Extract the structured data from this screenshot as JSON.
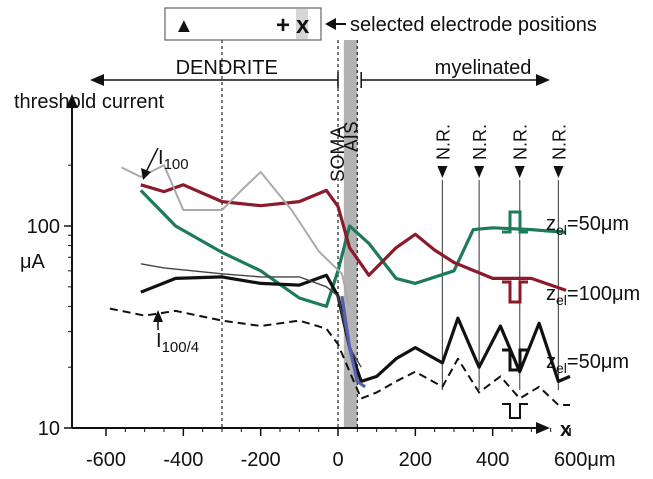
{
  "chart_data": {
    "type": "line",
    "title": "",
    "xlabel": "x",
    "ylabel": "threshold current",
    "yunit": "μA",
    "yscale": "log",
    "xlim": [
      -620,
      640
    ],
    "ylim": [
      10,
      250
    ],
    "x_ticks": [
      {
        "value": -600,
        "label": "-600"
      },
      {
        "value": -400,
        "label": "-400"
      },
      {
        "value": -200,
        "label": "-200"
      },
      {
        "value": 0,
        "label": "0"
      },
      {
        "value": 200,
        "label": "200"
      },
      {
        "value": 400,
        "label": "400"
      },
      {
        "value": 600,
        "label": "600μm"
      }
    ],
    "y_ticks": [
      {
        "value": 10,
        "label": "10"
      },
      {
        "value": 100,
        "label": "100"
      }
    ],
    "regions": {
      "dendrite": "DENDRITE",
      "myelinated": "myelinated",
      "soma": "SOMA",
      "ais": "AIS",
      "node": "N.R.",
      "node_positions": [
        270,
        365,
        470,
        570
      ],
      "ais_range": [
        15,
        50
      ],
      "dendrite_range": [
        -610,
        0
      ],
      "myelinated_range": [
        55,
        610
      ]
    },
    "legend": {
      "text": "selected electrode positions",
      "markers": [
        {
          "symbol": "▲",
          "color": "#b5a800",
          "x": -300
        },
        {
          "symbol": "+",
          "color": "#222222",
          "x": 0
        },
        {
          "symbol": "x",
          "color": "#8b1a2b",
          "x": 50
        }
      ]
    },
    "annotations": {
      "i100_base": "I",
      "i100_sub": "100",
      "i100_4_base": "I",
      "i100_4_sub": "100/4"
    },
    "series": [
      {
        "label_base": "z",
        "label_sub": "el",
        "label_value": "=50μm",
        "color": "#1d7a5c",
        "pulse": "anodic",
        "x": [
          -510,
          -420,
          -300,
          -200,
          -100,
          -30,
          0,
          30,
          80,
          150,
          200,
          300,
          350,
          400,
          500,
          590
        ],
        "y": [
          150,
          100,
          74,
          60,
          44,
          40,
          60,
          100,
          82,
          55,
          52,
          60,
          96,
          98,
          96,
          93
        ]
      },
      {
        "label_base": "z",
        "label_sub": "el",
        "label_value": "=100μm",
        "color": "#8b1a2b",
        "pulse": "cathodic",
        "x": [
          -510,
          -450,
          -400,
          -300,
          -200,
          -100,
          -30,
          0,
          30,
          80,
          150,
          200,
          250,
          300,
          400,
          500,
          590
        ],
        "y": [
          160,
          148,
          160,
          132,
          126,
          132,
          150,
          125,
          78,
          57,
          78,
          91,
          76,
          66,
          55,
          55,
          48
        ]
      },
      {
        "label_base": "z",
        "label_sub": "el",
        "label_value": "=50μm",
        "color": "#111111",
        "pulse": "cathodic",
        "x": [
          -510,
          -420,
          -300,
          -200,
          -100,
          -30,
          0,
          30,
          60,
          100,
          150,
          200,
          270,
          310,
          365,
          420,
          470,
          520,
          570,
          600
        ],
        "y": [
          47,
          55,
          56,
          52,
          51,
          57,
          45,
          25,
          17,
          18,
          22,
          25,
          21,
          35,
          20,
          32,
          19,
          33,
          17,
          18
        ]
      },
      {
        "label_base": "",
        "label_sub": "",
        "label_value": "",
        "color": "#111111",
        "dashed": true,
        "pulse": "cathodic-small",
        "x": [
          -590,
          -500,
          -420,
          -300,
          -200,
          -100,
          -30,
          0,
          30,
          60,
          100,
          150,
          200,
          270,
          310,
          365,
          420,
          470,
          520,
          570,
          600
        ],
        "y": [
          39,
          36,
          38,
          34,
          32,
          34,
          31,
          26,
          19,
          14,
          15,
          17,
          19,
          16,
          22,
          15,
          18,
          14,
          16,
          13,
          13
        ]
      },
      {
        "label_base": "",
        "label_sub": "",
        "label_value": "",
        "color": "#aaaaaa",
        "x": [
          -560,
          -510,
          -450,
          -400,
          -300,
          -250,
          -200,
          -120,
          -50,
          10,
          30
        ],
        "y": [
          195,
          175,
          200,
          120,
          120,
          150,
          185,
          120,
          75,
          58,
          40
        ]
      },
      {
        "label_base": "",
        "label_sub": "",
        "label_value": "",
        "color": "#444444",
        "thin": true,
        "x": [
          -510,
          -450,
          -300,
          -200,
          -100,
          -30,
          0,
          30,
          60
        ],
        "y": [
          65,
          62,
          58,
          56,
          56,
          50,
          45,
          25,
          20
        ]
      },
      {
        "label_base": "",
        "label_sub": "",
        "label_value": "",
        "color": "#5560b0",
        "x": [
          10,
          30,
          50,
          70
        ],
        "y": [
          45,
          25,
          17,
          16
        ]
      }
    ]
  }
}
